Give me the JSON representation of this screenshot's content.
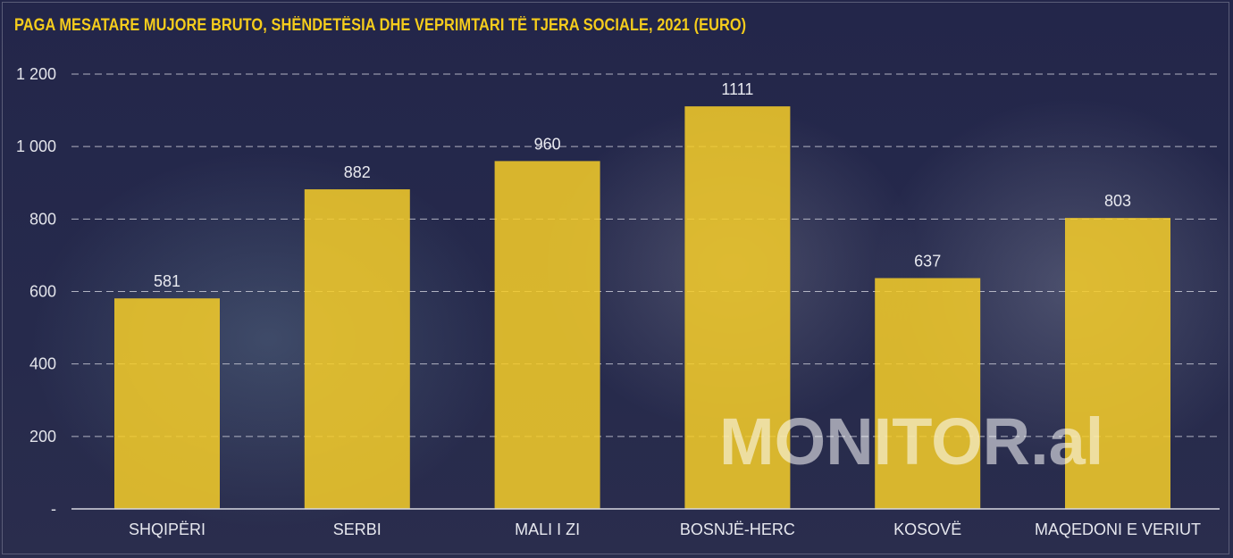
{
  "title": "PAGA MESATARE MUJORE BRUTO, SHËNDETËSIA DHE VEPRIMTARI TË TJERA SOCIALE, 2021 (EURO)",
  "watermark": "MONITOR.al",
  "colors": {
    "bar": "#f6cd29",
    "title": "#f5cc1c",
    "background": "#222441"
  },
  "chart_data": {
    "type": "bar",
    "title": "PAGA MESATARE MUJORE BRUTO, SHËNDETËSIA DHE VEPRIMTARI TË TJERA SOCIALE, 2021 (EURO)",
    "categories": [
      "SHQIPËRI",
      "SERBI",
      "MALI I ZI",
      "BOSNJË-HERC",
      "KOSOVË",
      "MAQEDONI E VERIUT"
    ],
    "values": [
      581,
      882,
      960,
      1111,
      637,
      803
    ],
    "value_labels": [
      "581",
      "882",
      "960",
      "1111",
      "637",
      "803"
    ],
    "yticks": [
      0,
      200,
      400,
      600,
      800,
      1000,
      1200
    ],
    "ytick_labels": [
      "-",
      "200",
      "400",
      "600",
      "800",
      "1 000",
      "1 200"
    ],
    "ylim": [
      0,
      1200
    ],
    "xlabel": "",
    "ylabel": "",
    "grid": "horizontal dashed",
    "legend": "none"
  }
}
